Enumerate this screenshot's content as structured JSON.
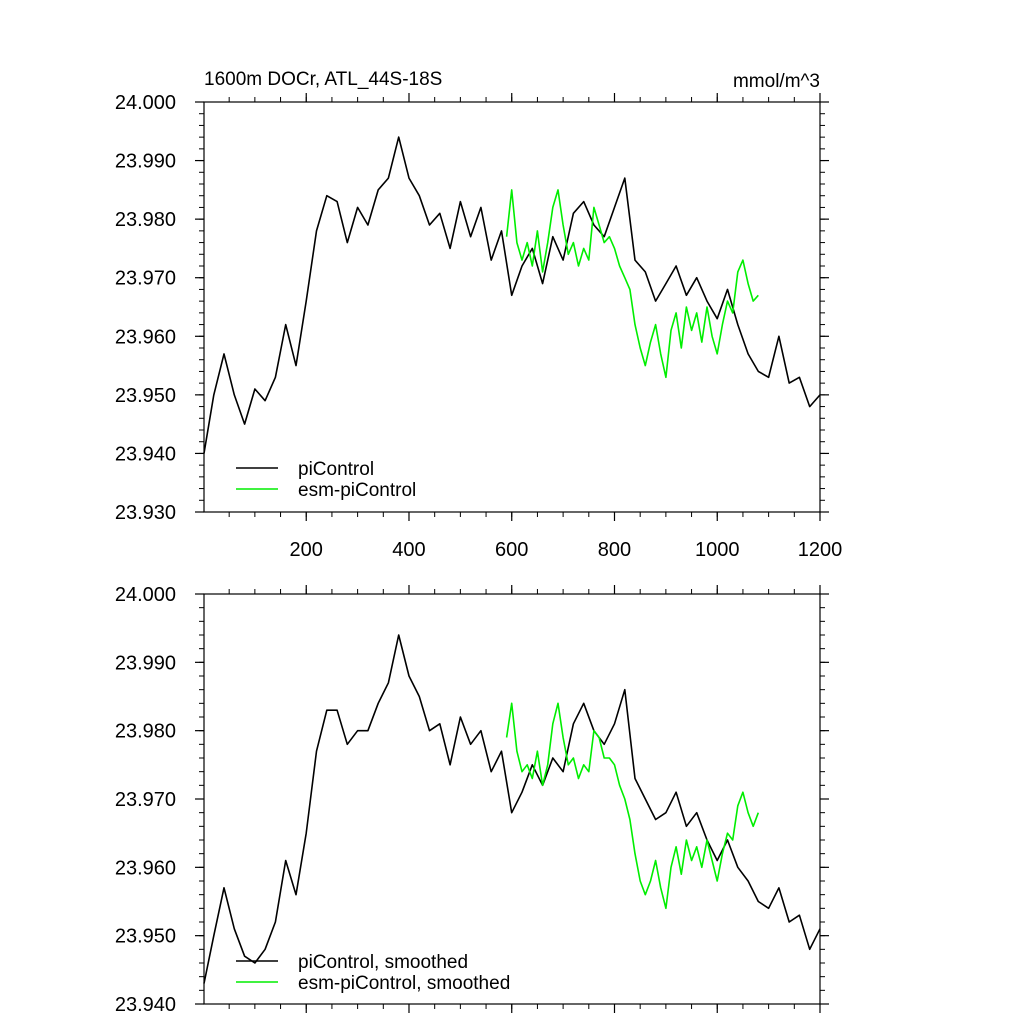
{
  "header": {
    "title": "1600m DOCr, ATL_44S-18S",
    "units": "mmol/m^3"
  },
  "colors": {
    "piControl": "#000000",
    "esm_piControl": "#00ee00",
    "frame": "#000000"
  },
  "chart_data": [
    {
      "type": "line",
      "panel": "top",
      "xlim": [
        1,
        1200
      ],
      "ylim": [
        23.93,
        24.0
      ],
      "x_ticks": [
        200,
        400,
        600,
        800,
        1000,
        1200
      ],
      "x_tick_labels": [
        "200",
        "400",
        "600",
        "800",
        "1000",
        "1200"
      ],
      "y_ticks": [
        23.93,
        23.94,
        23.95,
        23.96,
        23.97,
        23.98,
        23.99,
        24.0
      ],
      "y_tick_labels": [
        "23.930",
        "23.940",
        "23.950",
        "23.960",
        "23.970",
        "23.980",
        "23.990",
        "24.000"
      ],
      "legend": {
        "position": "bottom-left",
        "entries": [
          "piControl",
          "esm-piControl"
        ]
      },
      "series": [
        {
          "name": "piControl",
          "color": "#000000",
          "x": [
            1,
            20,
            40,
            60,
            80,
            100,
            120,
            140,
            160,
            180,
            200,
            220,
            240,
            260,
            280,
            300,
            320,
            340,
            360,
            380,
            400,
            420,
            440,
            460,
            480,
            500,
            520,
            540,
            560,
            580,
            600,
            620,
            640,
            660,
            680,
            700,
            720,
            740,
            760,
            780,
            800,
            820,
            840,
            860,
            880,
            900,
            920,
            940,
            960,
            980,
            1000,
            1020,
            1040,
            1060,
            1080,
            1100,
            1120,
            1140,
            1160,
            1180,
            1200
          ],
          "y": [
            23.94,
            23.95,
            23.957,
            23.95,
            23.945,
            23.951,
            23.949,
            23.953,
            23.962,
            23.955,
            23.966,
            23.978,
            23.984,
            23.983,
            23.976,
            23.982,
            23.979,
            23.985,
            23.987,
            23.994,
            23.987,
            23.984,
            23.979,
            23.981,
            23.975,
            23.983,
            23.977,
            23.982,
            23.973,
            23.978,
            23.967,
            23.972,
            23.975,
            23.969,
            23.977,
            23.973,
            23.981,
            23.983,
            23.979,
            23.977,
            23.982,
            23.987,
            23.973,
            23.971,
            23.966,
            23.969,
            23.972,
            23.967,
            23.97,
            23.966,
            23.963,
            23.968,
            23.962,
            23.957,
            23.954,
            23.953,
            23.96,
            23.952,
            23.953,
            23.948,
            23.95
          ]
        },
        {
          "name": "esm-piControl",
          "color": "#00ee00",
          "x": [
            590,
            600,
            610,
            620,
            630,
            640,
            650,
            660,
            670,
            680,
            690,
            700,
            710,
            720,
            730,
            740,
            750,
            760,
            770,
            780,
            790,
            800,
            810,
            820,
            830,
            840,
            850,
            860,
            870,
            880,
            890,
            900,
            910,
            920,
            930,
            940,
            950,
            960,
            970,
            980,
            990,
            1000,
            1010,
            1020,
            1030,
            1040,
            1050,
            1060,
            1070,
            1080
          ],
          "y": [
            23.977,
            23.985,
            23.976,
            23.973,
            23.976,
            23.972,
            23.978,
            23.971,
            23.976,
            23.982,
            23.985,
            23.979,
            23.974,
            23.976,
            23.972,
            23.975,
            23.973,
            23.982,
            23.979,
            23.976,
            23.977,
            23.975,
            23.972,
            23.97,
            23.968,
            23.962,
            23.958,
            23.955,
            23.959,
            23.962,
            23.957,
            23.953,
            23.961,
            23.964,
            23.958,
            23.965,
            23.961,
            23.964,
            23.959,
            23.965,
            23.96,
            23.957,
            23.962,
            23.966,
            23.964,
            23.971,
            23.973,
            23.969,
            23.966,
            23.967
          ]
        }
      ]
    },
    {
      "type": "line",
      "panel": "bottom",
      "xlim": [
        1,
        1200
      ],
      "ylim": [
        23.94,
        24.0
      ],
      "x_ticks": [
        200,
        400,
        600,
        800,
        1000,
        1200
      ],
      "x_tick_labels": [],
      "y_ticks": [
        23.94,
        23.95,
        23.96,
        23.97,
        23.98,
        23.99,
        24.0
      ],
      "y_tick_labels": [
        "23.940",
        "23.950",
        "23.960",
        "23.970",
        "23.980",
        "23.990",
        "24.000"
      ],
      "legend": {
        "position": "bottom-left",
        "entries": [
          "piControl, smoothed",
          "esm-piControl, smoothed"
        ]
      },
      "series": [
        {
          "name": "piControl, smoothed",
          "color": "#000000",
          "x": [
            1,
            20,
            40,
            60,
            80,
            100,
            120,
            140,
            160,
            180,
            200,
            220,
            240,
            260,
            280,
            300,
            320,
            340,
            360,
            380,
            400,
            420,
            440,
            460,
            480,
            500,
            520,
            540,
            560,
            580,
            600,
            620,
            640,
            660,
            680,
            700,
            720,
            740,
            760,
            780,
            800,
            820,
            840,
            860,
            880,
            900,
            920,
            940,
            960,
            980,
            1000,
            1020,
            1040,
            1060,
            1080,
            1100,
            1120,
            1140,
            1160,
            1180,
            1200
          ],
          "y": [
            23.943,
            23.95,
            23.957,
            23.951,
            23.947,
            23.946,
            23.948,
            23.952,
            23.961,
            23.956,
            23.965,
            23.977,
            23.983,
            23.983,
            23.978,
            23.98,
            23.98,
            23.984,
            23.987,
            23.994,
            23.988,
            23.985,
            23.98,
            23.981,
            23.975,
            23.982,
            23.978,
            23.98,
            23.974,
            23.977,
            23.968,
            23.971,
            23.975,
            23.972,
            23.976,
            23.974,
            23.981,
            23.984,
            23.98,
            23.978,
            23.981,
            23.986,
            23.973,
            23.97,
            23.967,
            23.968,
            23.971,
            23.966,
            23.968,
            23.964,
            23.961,
            23.964,
            23.96,
            23.958,
            23.955,
            23.954,
            23.957,
            23.952,
            23.953,
            23.948,
            23.951
          ]
        },
        {
          "name": "esm-piControl, smoothed",
          "color": "#00ee00",
          "x": [
            590,
            600,
            610,
            620,
            630,
            640,
            650,
            660,
            670,
            680,
            690,
            700,
            710,
            720,
            730,
            740,
            750,
            760,
            770,
            780,
            790,
            800,
            810,
            820,
            830,
            840,
            850,
            860,
            870,
            880,
            890,
            900,
            910,
            920,
            930,
            940,
            950,
            960,
            970,
            980,
            990,
            1000,
            1010,
            1020,
            1030,
            1040,
            1050,
            1060,
            1070,
            1080
          ],
          "y": [
            23.979,
            23.984,
            23.977,
            23.974,
            23.975,
            23.973,
            23.977,
            23.972,
            23.975,
            23.981,
            23.984,
            23.979,
            23.975,
            23.976,
            23.973,
            23.975,
            23.974,
            23.98,
            23.979,
            23.976,
            23.976,
            23.975,
            23.972,
            23.97,
            23.967,
            23.962,
            23.958,
            23.956,
            23.958,
            23.961,
            23.957,
            23.954,
            23.96,
            23.963,
            23.959,
            23.964,
            23.961,
            23.963,
            23.96,
            23.964,
            23.961,
            23.958,
            23.962,
            23.965,
            23.964,
            23.969,
            23.971,
            23.968,
            23.966,
            23.968
          ]
        }
      ]
    }
  ]
}
